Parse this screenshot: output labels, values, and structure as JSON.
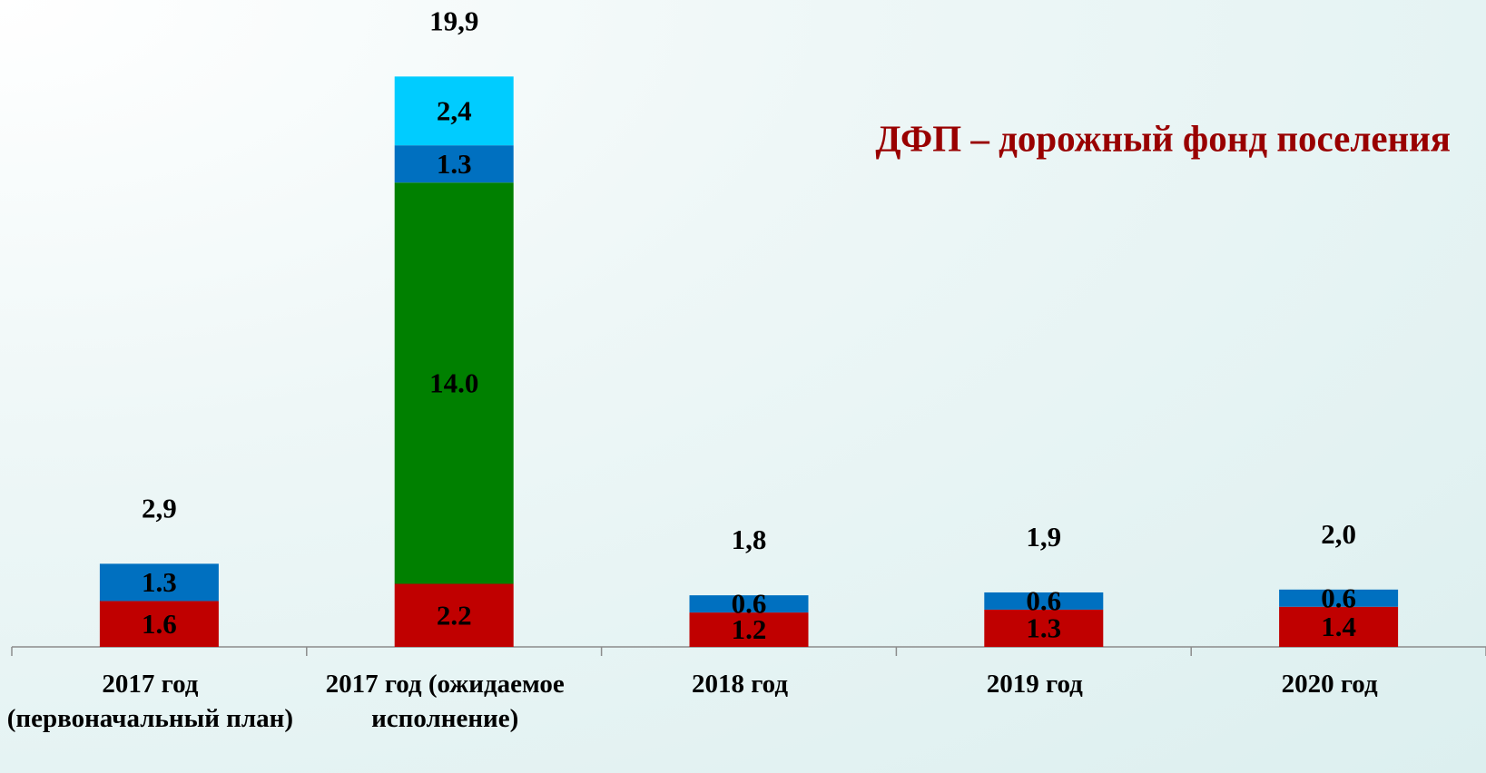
{
  "chart_data": {
    "type": "stacked_bar",
    "title": "ДФП – дорожный фонд поселения",
    "categories": [
      "2017 год (первоначальный план)",
      "2017 год (ожидаемое исполнение)",
      "2018 год",
      "2019 год",
      "2020 год"
    ],
    "series": [
      {
        "color": "#c00000",
        "values": [
          1.6,
          2.2,
          1.2,
          1.3,
          1.4
        ],
        "value_labels": [
          "1.6",
          "2.2",
          "1.2",
          "1.3",
          "1.4"
        ]
      },
      {
        "color": "#008000",
        "values": [
          null,
          14.0,
          null,
          null,
          null
        ],
        "value_labels": [
          null,
          "14.0",
          null,
          null,
          null
        ]
      },
      {
        "color": "#0070c0",
        "values": [
          1.3,
          1.3,
          0.6,
          0.6,
          0.6
        ],
        "value_labels": [
          "1.3",
          "1.3",
          "0.6",
          "0.6",
          "0.6"
        ]
      },
      {
        "color": "#00ccff",
        "values": [
          null,
          2.4,
          null,
          null,
          null
        ],
        "value_labels": [
          null,
          "2,4",
          null,
          null,
          null
        ]
      }
    ],
    "totals": [
      2.9,
      19.9,
      1.8,
      1.9,
      2.0
    ],
    "total_labels": [
      "2,9",
      "19,9",
      "1,8",
      "1,9",
      "2,0"
    ],
    "ylim": [
      0,
      22
    ]
  }
}
